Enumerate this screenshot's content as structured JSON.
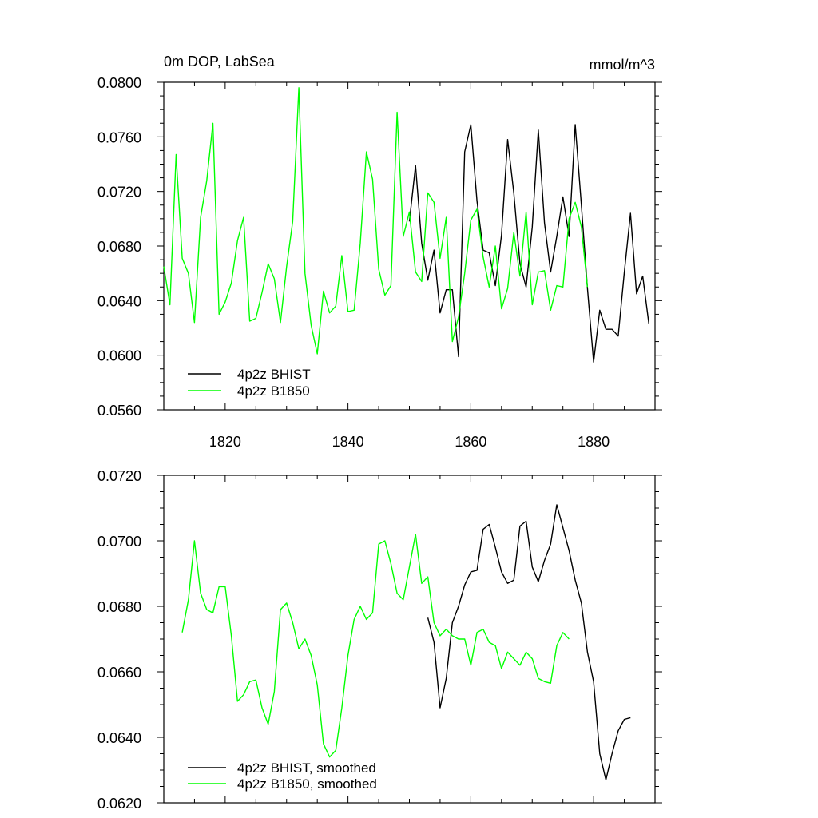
{
  "chart_data": [
    {
      "type": "line",
      "title": "0m DOP, LabSea",
      "units": "mmol/m^3",
      "xlim": [
        1810,
        1890
      ],
      "ylim": [
        0.056,
        0.08
      ],
      "x_ticks": [
        1820,
        1840,
        1860,
        1880
      ],
      "x_tick_labels": [
        "1820",
        "1840",
        "1860",
        "1880"
      ],
      "y_ticks": [
        0.056,
        0.06,
        0.064,
        0.068,
        0.072,
        0.076,
        0.08
      ],
      "y_tick_labels": [
        "0.0560",
        "0.0600",
        "0.0640",
        "0.0680",
        "0.0720",
        "0.0760",
        "0.0800"
      ],
      "legend_position": "bottom-left",
      "grid": false,
      "series": [
        {
          "name": "4p2z BHIST",
          "color": "#000000",
          "x": [
            1850,
            1851,
            1852,
            1853,
            1854,
            1855,
            1856,
            1857,
            1858,
            1859,
            1860,
            1861,
            1862,
            1863,
            1864,
            1865,
            1866,
            1867,
            1868,
            1869,
            1870,
            1871,
            1872,
            1873,
            1874,
            1875,
            1876,
            1877,
            1878,
            1879,
            1880,
            1881,
            1882,
            1883,
            1884,
            1885,
            1886,
            1887,
            1888,
            1889
          ],
          "y": [
            0.0698,
            0.0739,
            0.0682,
            0.0655,
            0.0677,
            0.0631,
            0.0648,
            0.0648,
            0.0599,
            0.0749,
            0.0769,
            0.0713,
            0.0677,
            0.0675,
            0.0651,
            0.0688,
            0.0758,
            0.0719,
            0.0667,
            0.065,
            0.0694,
            0.0765,
            0.0697,
            0.0661,
            0.0687,
            0.0716,
            0.0687,
            0.0769,
            0.071,
            0.0649,
            0.0595,
            0.0633,
            0.0619,
            0.0619,
            0.0614,
            0.0661,
            0.0704,
            0.0645,
            0.0658,
            0.0623
          ]
        },
        {
          "name": "4p2z B1850",
          "color": "#00ff00",
          "x": [
            1810,
            1811,
            1812,
            1813,
            1814,
            1815,
            1816,
            1817,
            1818,
            1819,
            1820,
            1821,
            1822,
            1823,
            1824,
            1825,
            1826,
            1827,
            1828,
            1829,
            1830,
            1831,
            1832,
            1833,
            1834,
            1835,
            1836,
            1837,
            1838,
            1839,
            1840,
            1841,
            1842,
            1843,
            1844,
            1845,
            1846,
            1847,
            1848,
            1849,
            1850,
            1851,
            1852,
            1853,
            1854,
            1855,
            1856,
            1857,
            1858,
            1859,
            1860,
            1861,
            1862,
            1863,
            1864,
            1865,
            1866,
            1867,
            1868,
            1869,
            1870,
            1871,
            1872,
            1873,
            1874,
            1875,
            1876,
            1877,
            1878,
            1879
          ],
          "y": [
            0.0665,
            0.0637,
            0.0747,
            0.0671,
            0.066,
            0.0624,
            0.0701,
            0.0728,
            0.077,
            0.063,
            0.0639,
            0.0653,
            0.0684,
            0.0701,
            0.0625,
            0.0627,
            0.0646,
            0.0667,
            0.0656,
            0.0624,
            0.0665,
            0.0698,
            0.0796,
            0.066,
            0.0622,
            0.0601,
            0.0647,
            0.0631,
            0.0636,
            0.0673,
            0.0632,
            0.0633,
            0.0682,
            0.0749,
            0.0729,
            0.0663,
            0.0644,
            0.0651,
            0.0778,
            0.0687,
            0.0705,
            0.0661,
            0.0654,
            0.0719,
            0.0712,
            0.0671,
            0.0701,
            0.061,
            0.0628,
            0.066,
            0.0699,
            0.0707,
            0.0672,
            0.065,
            0.068,
            0.0634,
            0.0649,
            0.069,
            0.0658,
            0.0705,
            0.0637,
            0.0661,
            0.0662,
            0.0633,
            0.0651,
            0.065,
            0.07,
            0.0712,
            0.0694,
            0.065
          ]
        }
      ]
    },
    {
      "type": "line",
      "xlim": [
        1810,
        1890
      ],
      "ylim": [
        0.062,
        0.072
      ],
      "x_ticks": [
        1820,
        1840,
        1860,
        1880
      ],
      "y_ticks": [
        0.062,
        0.064,
        0.066,
        0.068,
        0.07,
        0.072
      ],
      "y_tick_labels": [
        "0.0620",
        "0.0640",
        "0.0660",
        "0.0680",
        "0.0700",
        "0.0720"
      ],
      "legend_position": "bottom-left",
      "grid": false,
      "series": [
        {
          "name": "4p2z BHIST, smoothed",
          "color": "#000000",
          "x": [
            1853,
            1854,
            1855,
            1856,
            1857,
            1858,
            1859,
            1860,
            1861,
            1862,
            1863,
            1864,
            1865,
            1866,
            1867,
            1868,
            1869,
            1870,
            1871,
            1872,
            1873,
            1874,
            1875,
            1876,
            1877,
            1878,
            1879,
            1880,
            1881,
            1882,
            1883,
            1884,
            1885,
            1886
          ],
          "y": [
            0.06765,
            0.0669,
            0.0649,
            0.0658,
            0.0675,
            0.068,
            0.06865,
            0.06905,
            0.0691,
            0.07035,
            0.0705,
            0.0698,
            0.06905,
            0.0687,
            0.0688,
            0.07045,
            0.0706,
            0.0692,
            0.06875,
            0.0694,
            0.0699,
            0.0711,
            0.0704,
            0.0697,
            0.0688,
            0.0681,
            0.0666,
            0.0657,
            0.0635,
            0.0627,
            0.0635,
            0.0642,
            0.06455,
            0.0646
          ]
        },
        {
          "name": "4p2z B1850, smoothed",
          "color": "#00ff00",
          "x": [
            1813,
            1814,
            1815,
            1816,
            1817,
            1818,
            1819,
            1820,
            1821,
            1822,
            1823,
            1824,
            1825,
            1826,
            1827,
            1828,
            1829,
            1830,
            1831,
            1832,
            1833,
            1834,
            1835,
            1836,
            1837,
            1838,
            1839,
            1840,
            1841,
            1842,
            1843,
            1844,
            1845,
            1846,
            1847,
            1848,
            1849,
            1850,
            1851,
            1852,
            1853,
            1854,
            1855,
            1856,
            1857,
            1858,
            1859,
            1860,
            1861,
            1862,
            1863,
            1864,
            1865,
            1866,
            1867,
            1868,
            1869,
            1870,
            1871,
            1872,
            1873,
            1874,
            1875,
            1876
          ],
          "y": [
            0.0672,
            0.0682,
            0.07,
            0.0684,
            0.0679,
            0.0678,
            0.0686,
            0.0686,
            0.0671,
            0.0651,
            0.0653,
            0.0657,
            0.06575,
            0.0649,
            0.0644,
            0.0654,
            0.0679,
            0.0681,
            0.0675,
            0.0667,
            0.067,
            0.0665,
            0.0656,
            0.0638,
            0.0634,
            0.0636,
            0.0649,
            0.0665,
            0.0676,
            0.068,
            0.0676,
            0.0678,
            0.0699,
            0.07,
            0.0693,
            0.0684,
            0.0682,
            0.0692,
            0.0702,
            0.0687,
            0.0689,
            0.0675,
            0.0671,
            0.0673,
            0.0671,
            0.067,
            0.067,
            0.0662,
            0.0672,
            0.0673,
            0.0669,
            0.0668,
            0.0661,
            0.0666,
            0.0664,
            0.0662,
            0.0666,
            0.0664,
            0.0658,
            0.0657,
            0.06565,
            0.0668,
            0.0672,
            0.067
          ]
        }
      ]
    }
  ]
}
